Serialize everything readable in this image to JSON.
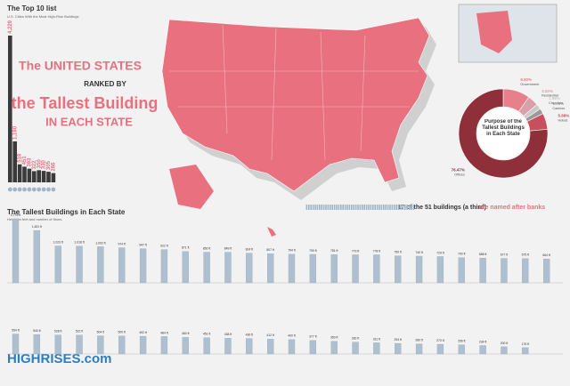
{
  "header": {
    "title": "The Top 10 list",
    "subtitle": "U.S. Cities With the Most High-Rise Buildings"
  },
  "headline": {
    "line1": "The UNITED STATES",
    "line2": "RANKED BY",
    "line3": "the Tallest Building",
    "line4": "IN EACH STATE"
  },
  "banks": {
    "lead": "17 of the 51 buildings (a third)",
    "tail": "are named after banks"
  },
  "logo": "HIGHRISES.com",
  "chart_data": [
    {
      "type": "bar",
      "categories": [
        null,
        null,
        null,
        null,
        null,
        null,
        null,
        null,
        null,
        null
      ],
      "values": [
        4229,
        1180,
        518,
        451,
        393,
        322,
        350,
        330,
        305,
        266
      ],
      "value_labels": [
        "4,229",
        "1,180",
        "518",
        "451",
        "393",
        "322",
        "350",
        "330",
        "305",
        "266"
      ],
      "color": "#3a3a3a"
    },
    {
      "type": "pie",
      "title": "Purpose of the Tallest Buildings in Each State",
      "categories": [
        "Government",
        "Residential",
        "Churches",
        "Casinos",
        "Hotels",
        "Offices"
      ],
      "values": [
        9.8,
        3.92,
        1.96,
        1.96,
        5.88,
        76.47
      ],
      "value_labels": [
        "9.80%",
        "3.92%",
        "1.96%",
        "1.96%",
        "5.88%",
        "76.47%"
      ],
      "colors": [
        "#e8808c",
        "#d9a0a8",
        "#c9c9c9",
        "#9a9a9a",
        "#c8505e",
        "#8e2f3a"
      ]
    },
    {
      "type": "buildings",
      "title": "The Tallest Buildings in Each State",
      "subtitle": "Height in feet and number of floors",
      "values": [
        1776,
        1451,
        1023,
        1018,
        1002,
        974,
        947,
        922,
        871,
        850,
        849,
        824,
        807,
        794,
        790,
        781,
        779,
        778,
        750,
        740,
        729,
        700,
        688,
        677,
        675,
        664,
        554,
        540,
        528,
        522,
        504,
        500,
        492,
        484,
        460,
        451,
        438,
        430,
        412,
        400,
        377,
        350,
        330,
        311,
        294,
        280,
        270,
        256,
        234,
        200,
        176
      ],
      "value_labels": [
        "1,776 ft",
        "1,451 ft",
        "1,023 ft",
        "1,018 ft",
        "1,002 ft",
        "974 ft",
        "947 ft",
        "922 ft",
        "871 ft",
        "850 ft",
        "849 ft",
        "824 ft",
        "807 ft",
        "794 ft",
        "790 ft",
        "781 ft",
        "779 ft",
        "778 ft",
        "750 ft",
        "740 ft",
        "729 ft",
        "700 ft",
        "688 ft",
        "677 ft",
        "675 ft",
        "664 ft",
        "554 ft",
        "540 ft",
        "528 ft",
        "522 ft",
        "504 ft",
        "500 ft",
        "492 ft",
        "484 ft",
        "460 ft",
        "451 ft",
        "438 ft",
        "430 ft",
        "412 ft",
        "400 ft",
        "377 ft",
        "350 ft",
        "330 ft",
        "311 ft",
        "294 ft",
        "280 ft",
        "270 ft",
        "256 ft",
        "234 ft",
        "200 ft",
        "176 ft"
      ],
      "color": "#aebfcf"
    }
  ]
}
